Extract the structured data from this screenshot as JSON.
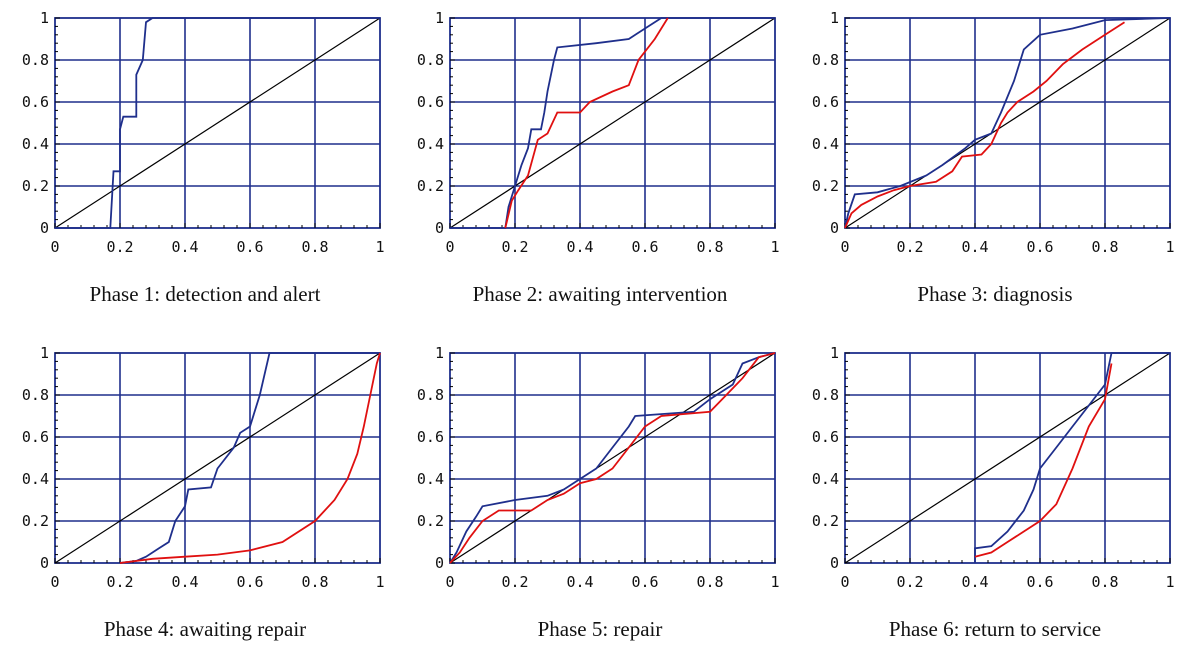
{
  "colors": {
    "grid": "#1f2f8c",
    "black": "#000000",
    "blue": "#1f2f8c",
    "red": "#e01010"
  },
  "chart_data": [
    {
      "type": "line",
      "title": "",
      "caption": "Phase 1: detection and alert",
      "xlim": [
        0,
        1
      ],
      "ylim": [
        0,
        1
      ],
      "xticks": [
        "0",
        "0.2",
        "0.4",
        "0.6",
        "0.8",
        "1"
      ],
      "yticks": [
        "0",
        "0.2",
        "0.4",
        "0.6",
        "0.8",
        "1"
      ],
      "grid": true,
      "series": [
        {
          "color": "black",
          "points": [
            [
              0,
              0
            ],
            [
              1,
              1
            ]
          ]
        },
        {
          "color": "blue",
          "points": [
            [
              0,
              0
            ],
            [
              0.17,
              0
            ],
            [
              0.18,
              0.27
            ],
            [
              0.2,
              0.27
            ],
            [
              0.2,
              0.47
            ],
            [
              0.21,
              0.53
            ],
            [
              0.25,
              0.53
            ],
            [
              0.25,
              0.73
            ],
            [
              0.27,
              0.8
            ],
            [
              0.28,
              0.98
            ],
            [
              0.3,
              1
            ],
            [
              1,
              1
            ]
          ]
        }
      ]
    },
    {
      "type": "line",
      "title": "",
      "caption": "Phase 2: awaiting intervention",
      "xlim": [
        0,
        1
      ],
      "ylim": [
        0,
        1
      ],
      "xticks": [
        "0",
        "0.2",
        "0.4",
        "0.6",
        "0.8",
        "1"
      ],
      "yticks": [
        "0",
        "0.2",
        "0.4",
        "0.6",
        "0.8",
        "1"
      ],
      "grid": true,
      "series": [
        {
          "color": "black",
          "points": [
            [
              0,
              0
            ],
            [
              1,
              1
            ]
          ]
        },
        {
          "color": "blue",
          "points": [
            [
              0,
              0
            ],
            [
              0.17,
              0
            ],
            [
              0.18,
              0.1
            ],
            [
              0.2,
              0.2
            ],
            [
              0.22,
              0.3
            ],
            [
              0.24,
              0.38
            ],
            [
              0.25,
              0.47
            ],
            [
              0.28,
              0.47
            ],
            [
              0.29,
              0.55
            ],
            [
              0.3,
              0.65
            ],
            [
              0.32,
              0.8
            ],
            [
              0.33,
              0.86
            ],
            [
              0.45,
              0.88
            ],
            [
              0.55,
              0.9
            ],
            [
              0.6,
              0.95
            ],
            [
              0.65,
              1
            ],
            [
              1,
              1
            ]
          ]
        },
        {
          "color": "red",
          "points": [
            [
              0.17,
              0
            ],
            [
              0.19,
              0.13
            ],
            [
              0.21,
              0.18
            ],
            [
              0.24,
              0.25
            ],
            [
              0.27,
              0.42
            ],
            [
              0.3,
              0.45
            ],
            [
              0.33,
              0.55
            ],
            [
              0.4,
              0.55
            ],
            [
              0.43,
              0.6
            ],
            [
              0.5,
              0.65
            ],
            [
              0.55,
              0.68
            ],
            [
              0.58,
              0.8
            ],
            [
              0.63,
              0.9
            ],
            [
              0.67,
              1
            ]
          ]
        }
      ]
    },
    {
      "type": "line",
      "title": "",
      "caption": "Phase 3: diagnosis",
      "xlim": [
        0,
        1
      ],
      "ylim": [
        0,
        1
      ],
      "xticks": [
        "0",
        "0.2",
        "0.4",
        "0.6",
        "0.8",
        "1"
      ],
      "yticks": [
        "0",
        "0.2",
        "0.4",
        "0.6",
        "0.8",
        "1"
      ],
      "grid": true,
      "series": [
        {
          "color": "black",
          "points": [
            [
              0,
              0
            ],
            [
              1,
              1
            ]
          ]
        },
        {
          "color": "blue",
          "points": [
            [
              0,
              0
            ],
            [
              0.01,
              0.07
            ],
            [
              0.03,
              0.16
            ],
            [
              0.1,
              0.17
            ],
            [
              0.17,
              0.2
            ],
            [
              0.25,
              0.25
            ],
            [
              0.3,
              0.3
            ],
            [
              0.37,
              0.38
            ],
            [
              0.4,
              0.42
            ],
            [
              0.45,
              0.45
            ],
            [
              0.48,
              0.55
            ],
            [
              0.52,
              0.7
            ],
            [
              0.55,
              0.85
            ],
            [
              0.6,
              0.92
            ],
            [
              0.7,
              0.95
            ],
            [
              0.8,
              0.99
            ],
            [
              1,
              1
            ]
          ]
        },
        {
          "color": "red",
          "points": [
            [
              0,
              0
            ],
            [
              0.02,
              0.07
            ],
            [
              0.05,
              0.11
            ],
            [
              0.1,
              0.15
            ],
            [
              0.15,
              0.18
            ],
            [
              0.2,
              0.2
            ],
            [
              0.28,
              0.22
            ],
            [
              0.33,
              0.27
            ],
            [
              0.36,
              0.34
            ],
            [
              0.42,
              0.35
            ],
            [
              0.45,
              0.4
            ],
            [
              0.48,
              0.5
            ],
            [
              0.5,
              0.55
            ],
            [
              0.53,
              0.6
            ],
            [
              0.58,
              0.65
            ],
            [
              0.62,
              0.7
            ],
            [
              0.67,
              0.78
            ],
            [
              0.73,
              0.85
            ],
            [
              0.8,
              0.92
            ],
            [
              0.86,
              0.98
            ]
          ]
        }
      ]
    },
    {
      "type": "line",
      "title": "",
      "caption": "Phase 4: awaiting repair",
      "xlim": [
        0,
        1
      ],
      "ylim": [
        0,
        1
      ],
      "xticks": [
        "0",
        "0.2",
        "0.4",
        "0.6",
        "0.8",
        "1"
      ],
      "yticks": [
        "0",
        "0.2",
        "0.4",
        "0.6",
        "0.8",
        "1"
      ],
      "grid": true,
      "series": [
        {
          "color": "black",
          "points": [
            [
              0,
              0
            ],
            [
              1,
              1
            ]
          ]
        },
        {
          "color": "blue",
          "points": [
            [
              0.2,
              0
            ],
            [
              0.25,
              0.01
            ],
            [
              0.28,
              0.03
            ],
            [
              0.32,
              0.07
            ],
            [
              0.35,
              0.1
            ],
            [
              0.37,
              0.2
            ],
            [
              0.4,
              0.27
            ],
            [
              0.41,
              0.35
            ],
            [
              0.48,
              0.36
            ],
            [
              0.5,
              0.45
            ],
            [
              0.55,
              0.55
            ],
            [
              0.57,
              0.62
            ],
            [
              0.6,
              0.65
            ],
            [
              0.63,
              0.8
            ],
            [
              0.66,
              1
            ],
            [
              1,
              1
            ]
          ]
        },
        {
          "color": "red",
          "points": [
            [
              0.2,
              0
            ],
            [
              0.3,
              0.02
            ],
            [
              0.4,
              0.03
            ],
            [
              0.5,
              0.04
            ],
            [
              0.6,
              0.06
            ],
            [
              0.7,
              0.1
            ],
            [
              0.8,
              0.2
            ],
            [
              0.86,
              0.3
            ],
            [
              0.9,
              0.4
            ],
            [
              0.93,
              0.52
            ],
            [
              0.95,
              0.65
            ],
            [
              0.97,
              0.8
            ],
            [
              0.99,
              0.95
            ],
            [
              1,
              1
            ]
          ]
        }
      ]
    },
    {
      "type": "line",
      "title": "",
      "caption": "Phase 5: repair",
      "xlim": [
        0,
        1
      ],
      "ylim": [
        0,
        1
      ],
      "xticks": [
        "0",
        "0.2",
        "0.4",
        "0.6",
        "0.8",
        "1"
      ],
      "yticks": [
        "0",
        "0.2",
        "0.4",
        "0.6",
        "0.8",
        "1"
      ],
      "grid": true,
      "series": [
        {
          "color": "black",
          "points": [
            [
              0,
              0
            ],
            [
              1,
              1
            ]
          ]
        },
        {
          "color": "blue",
          "points": [
            [
              0,
              0
            ],
            [
              0.02,
              0.05
            ],
            [
              0.05,
              0.15
            ],
            [
              0.08,
              0.22
            ],
            [
              0.1,
              0.27
            ],
            [
              0.2,
              0.3
            ],
            [
              0.3,
              0.32
            ],
            [
              0.35,
              0.35
            ],
            [
              0.4,
              0.4
            ],
            [
              0.45,
              0.45
            ],
            [
              0.5,
              0.55
            ],
            [
              0.55,
              0.65
            ],
            [
              0.57,
              0.7
            ],
            [
              0.75,
              0.72
            ],
            [
              0.8,
              0.78
            ],
            [
              0.87,
              0.85
            ],
            [
              0.9,
              0.95
            ],
            [
              0.95,
              0.98
            ],
            [
              1,
              1
            ]
          ]
        },
        {
          "color": "red",
          "points": [
            [
              0,
              0
            ],
            [
              0.03,
              0.05
            ],
            [
              0.06,
              0.12
            ],
            [
              0.1,
              0.2
            ],
            [
              0.15,
              0.25
            ],
            [
              0.25,
              0.25
            ],
            [
              0.3,
              0.3
            ],
            [
              0.35,
              0.33
            ],
            [
              0.4,
              0.38
            ],
            [
              0.45,
              0.4
            ],
            [
              0.5,
              0.45
            ],
            [
              0.55,
              0.55
            ],
            [
              0.6,
              0.65
            ],
            [
              0.65,
              0.7
            ],
            [
              0.8,
              0.72
            ],
            [
              0.85,
              0.8
            ],
            [
              0.9,
              0.88
            ],
            [
              0.95,
              0.98
            ],
            [
              1,
              1
            ]
          ]
        }
      ]
    },
    {
      "type": "line",
      "title": "",
      "caption": "Phase 6: return to service",
      "xlim": [
        0,
        1
      ],
      "ylim": [
        0,
        1
      ],
      "xticks": [
        "0",
        "0.2",
        "0.4",
        "0.6",
        "0.8",
        "1"
      ],
      "yticks": [
        "0",
        "0.2",
        "0.4",
        "0.6",
        "0.8",
        "1"
      ],
      "grid": true,
      "series": [
        {
          "color": "black",
          "points": [
            [
              0,
              0
            ],
            [
              1,
              1
            ]
          ]
        },
        {
          "color": "blue",
          "points": [
            [
              0.4,
              0
            ],
            [
              0.4,
              0.07
            ],
            [
              0.45,
              0.08
            ],
            [
              0.5,
              0.15
            ],
            [
              0.55,
              0.25
            ],
            [
              0.58,
              0.35
            ],
            [
              0.6,
              0.45
            ],
            [
              0.65,
              0.55
            ],
            [
              0.7,
              0.65
            ],
            [
              0.75,
              0.75
            ],
            [
              0.8,
              0.85
            ],
            [
              0.82,
              1
            ],
            [
              1,
              1
            ]
          ]
        },
        {
          "color": "red",
          "points": [
            [
              0.4,
              0.03
            ],
            [
              0.45,
              0.05
            ],
            [
              0.5,
              0.1
            ],
            [
              0.55,
              0.15
            ],
            [
              0.6,
              0.2
            ],
            [
              0.65,
              0.28
            ],
            [
              0.7,
              0.45
            ],
            [
              0.75,
              0.65
            ],
            [
              0.8,
              0.78
            ],
            [
              0.82,
              0.95
            ]
          ]
        }
      ]
    }
  ]
}
